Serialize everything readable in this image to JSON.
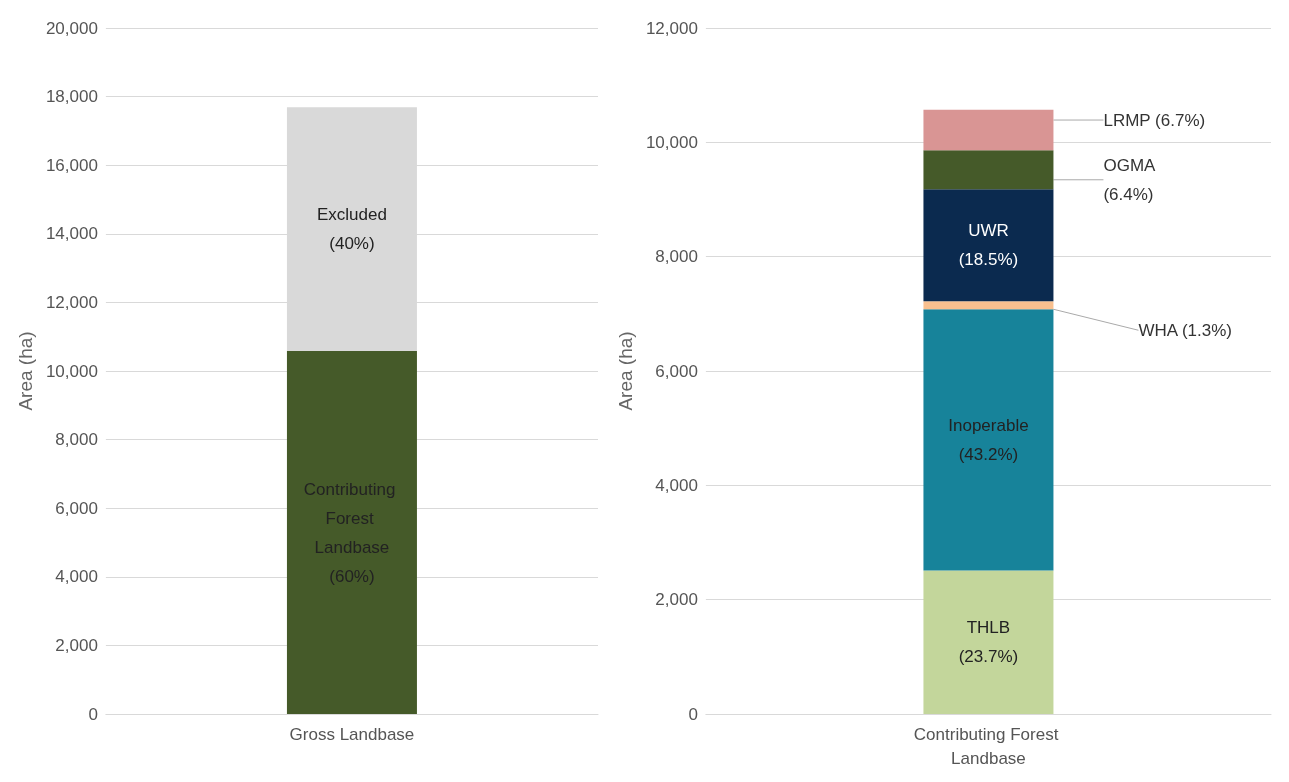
{
  "chart_data": [
    {
      "type": "bar",
      "stacked": true,
      "ylabel": "Area (ha)",
      "categories": [
        "Gross Landbase"
      ],
      "ylim": [
        0,
        20000
      ],
      "yticks": [
        0,
        {
          "value": 2000,
          "label": "2,000"
        },
        {
          "value": 4000,
          "label": "4,000"
        },
        {
          "value": 6000,
          "label": "6,000"
        },
        {
          "value": 8000,
          "label": "8,000"
        },
        {
          "value": 10000,
          "label": "10,000"
        },
        {
          "value": 12000,
          "label": "12,000"
        },
        {
          "value": 14000,
          "label": "14,000"
        },
        {
          "value": 16000,
          "label": "16,000"
        },
        {
          "value": 18000,
          "label": "18,000"
        },
        {
          "value": 20000,
          "label": "20,000"
        }
      ],
      "grid": "y",
      "series": [
        {
          "name": "Contributing Forest Landbase (60%)",
          "color": "#455a29",
          "values": [
            10580
          ]
        },
        {
          "name": "Excluded (40%)",
          "color": "#d9d9d9",
          "values": [
            7110
          ]
        }
      ]
    },
    {
      "type": "bar",
      "stacked": true,
      "ylabel": "Area (ha)",
      "categories": [
        "Contributing Forest Landbase"
      ],
      "ylim": [
        0,
        12000
      ],
      "yticks": [
        0,
        {
          "value": 2000,
          "label": "2,000"
        },
        {
          "value": 4000,
          "label": "4,000"
        },
        {
          "value": 6000,
          "label": "6,000"
        },
        {
          "value": 8000,
          "label": "8,000"
        },
        {
          "value": 10000,
          "label": "10,000"
        },
        {
          "value": 12000,
          "label": "12,000"
        }
      ],
      "grid": "y",
      "series": [
        {
          "name": "THLB (23.7%)",
          "color": "#c3d69b",
          "values": [
            2510
          ]
        },
        {
          "name": "Inoperable (43.2%)",
          "color": "#17839a",
          "values": [
            4570
          ]
        },
        {
          "name": "WHA (1.3%)",
          "color": "#f9c08f",
          "values": [
            140
          ]
        },
        {
          "name": "UWR (18.5%)",
          "color": "#0b2a4f",
          "values": [
            1960
          ]
        },
        {
          "name": "OGMA (6.4%)",
          "color": "#455a29",
          "values": [
            680
          ]
        },
        {
          "name": "LRMP (6.7%)",
          "color": "#d99594",
          "values": [
            710
          ]
        }
      ]
    }
  ]
}
